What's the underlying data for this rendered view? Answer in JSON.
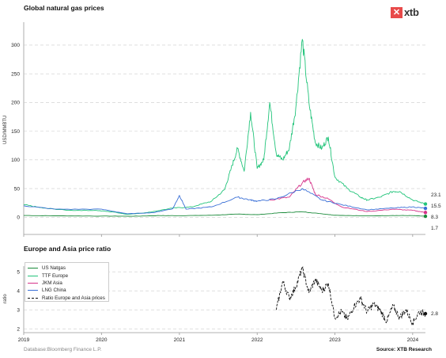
{
  "brand": {
    "logo_text": "xtb",
    "logo_mark": "✕",
    "logo_color": "#e84a4a"
  },
  "footer": {
    "left": "Database:Bloomberg Finance L.P.",
    "right": "Source: XTB Research"
  },
  "chart_data": [
    {
      "type": "line",
      "title": "Global natural gas prices",
      "xlabel": "",
      "ylabel": "USD/MMBTU",
      "xlim": [
        "2019-01-01",
        "2024-03-01"
      ],
      "ylim": [
        -30,
        340
      ],
      "yticks": [
        0,
        50,
        100,
        150,
        200,
        250,
        300
      ],
      "xticks": [
        "2019",
        "2020",
        "2021",
        "2022",
        "2023",
        "2024"
      ],
      "grid": "horizontal-dashed",
      "series": [
        {
          "name": "US Natgas",
          "color": "#1a8a3a",
          "end_label": "1.7",
          "points": [
            [
              "2019-01",
              3
            ],
            [
              "2019-06",
              2.5
            ],
            [
              "2020-01",
              2
            ],
            [
              "2020-06",
              1.8
            ],
            [
              "2020-10",
              2.8
            ],
            [
              "2021-01",
              2.7
            ],
            [
              "2021-06",
              3.4
            ],
            [
              "2021-10",
              5.5
            ],
            [
              "2022-01",
              4.5
            ],
            [
              "2022-05",
              8
            ],
            [
              "2022-08",
              9.5
            ],
            [
              "2022-11",
              6
            ],
            [
              "2023-01",
              3.5
            ],
            [
              "2023-06",
              2.3
            ],
            [
              "2023-10",
              3
            ],
            [
              "2024-01",
              2.8
            ],
            [
              "2024-03",
              1.7
            ]
          ]
        },
        {
          "name": "TTF Europe",
          "color": "#22c47a",
          "end_label": "23.1",
          "points": [
            [
              "2019-01",
              22
            ],
            [
              "2019-04",
              16
            ],
            [
              "2019-08",
              12
            ],
            [
              "2019-12",
              12
            ],
            [
              "2020-03",
              9
            ],
            [
              "2020-05",
              5
            ],
            [
              "2020-08",
              8
            ],
            [
              "2020-12",
              16
            ],
            [
              "2021-03",
              18
            ],
            [
              "2021-06",
              28
            ],
            [
              "2021-08",
              48
            ],
            [
              "2021-09",
              85
            ],
            [
              "2021-10",
              120
            ],
            [
              "2021-11",
              80
            ],
            [
              "2021-12",
              183
            ],
            [
              "2022-01",
              85
            ],
            [
              "2022-02",
              100
            ],
            [
              "2022-03",
              200
            ],
            [
              "2022-04",
              110
            ],
            [
              "2022-05",
              100
            ],
            [
              "2022-06",
              120
            ],
            [
              "2022-07",
              190
            ],
            [
              "2022-08",
              310
            ],
            [
              "2022-09",
              200
            ],
            [
              "2022-10",
              130
            ],
            [
              "2022-11",
              120
            ],
            [
              "2022-12",
              140
            ],
            [
              "2023-01",
              70
            ],
            [
              "2023-03",
              50
            ],
            [
              "2023-05",
              35
            ],
            [
              "2023-06",
              30
            ],
            [
              "2023-08",
              35
            ],
            [
              "2023-10",
              45
            ],
            [
              "2023-11",
              45
            ],
            [
              "2024-01",
              30
            ],
            [
              "2024-03",
              23.1
            ]
          ]
        },
        {
          "name": "JKM Asia",
          "color": "#d6338a",
          "end_label": "8.3",
          "points": [
            [
              "2022-03",
              30
            ],
            [
              "2022-06",
              35
            ],
            [
              "2022-08",
              60
            ],
            [
              "2022-09",
              68
            ],
            [
              "2022-10",
              40
            ],
            [
              "2022-12",
              32
            ],
            [
              "2023-02",
              18
            ],
            [
              "2023-06",
              10
            ],
            [
              "2023-10",
              14
            ],
            [
              "2024-01",
              12
            ],
            [
              "2024-03",
              8.3
            ]
          ]
        },
        {
          "name": "LNG China",
          "color": "#3a6fd6",
          "end_label": "15.5",
          "points": [
            [
              "2019-01",
              20
            ],
            [
              "2019-06",
              14
            ],
            [
              "2020-01",
              14
            ],
            [
              "2020-05",
              6
            ],
            [
              "2020-09",
              8
            ],
            [
              "2020-12",
              15
            ],
            [
              "2021-01",
              38
            ],
            [
              "2021-02",
              14
            ],
            [
              "2021-06",
              18
            ],
            [
              "2021-10",
              35
            ],
            [
              "2021-12",
              30
            ],
            [
              "2022-01",
              28
            ],
            [
              "2022-04",
              32
            ],
            [
              "2022-08",
              50
            ],
            [
              "2022-11",
              30
            ],
            [
              "2023-02",
              22
            ],
            [
              "2023-06",
              13
            ],
            [
              "2023-10",
              16
            ],
            [
              "2024-01",
              18
            ],
            [
              "2024-03",
              15.5
            ]
          ]
        }
      ]
    },
    {
      "type": "line",
      "title": "Europe and Asia price ratio",
      "xlabel": "",
      "ylabel": "ratio",
      "xlim": [
        "2019-01-01",
        "2024-03-01"
      ],
      "ylim": [
        1.8,
        5.3
      ],
      "yticks": [
        2,
        3,
        4,
        5
      ],
      "xticks": [
        "2019",
        "2020",
        "2021",
        "2022",
        "2023",
        "2024"
      ],
      "grid": "horizontal-dashed",
      "legend": "top-left",
      "series": [
        {
          "name": "Ratio Europe and Asia prices",
          "color": "#111111",
          "dash": true,
          "end_label": "2.8",
          "points": [
            [
              "2022-04",
              3.0
            ],
            [
              "2022-05",
              4.5
            ],
            [
              "2022-06",
              3.6
            ],
            [
              "2022-07",
              4.2
            ],
            [
              "2022-08",
              5.2
            ],
            [
              "2022-09",
              3.9
            ],
            [
              "2022-10",
              4.6
            ],
            [
              "2022-11",
              4.0
            ],
            [
              "2022-12",
              4.4
            ],
            [
              "2023-01",
              2.6
            ],
            [
              "2023-02",
              2.9
            ],
            [
              "2023-03",
              2.5
            ],
            [
              "2023-04",
              3.2
            ],
            [
              "2023-05",
              3.6
            ],
            [
              "2023-06",
              2.9
            ],
            [
              "2023-07",
              3.3
            ],
            [
              "2023-08",
              3.0
            ],
            [
              "2023-09",
              2.4
            ],
            [
              "2023-10",
              3.2
            ],
            [
              "2023-11",
              2.6
            ],
            [
              "2023-12",
              3.0
            ],
            [
              "2024-01",
              2.3
            ],
            [
              "2024-02",
              2.9
            ],
            [
              "2024-03",
              2.8
            ]
          ]
        }
      ]
    }
  ]
}
